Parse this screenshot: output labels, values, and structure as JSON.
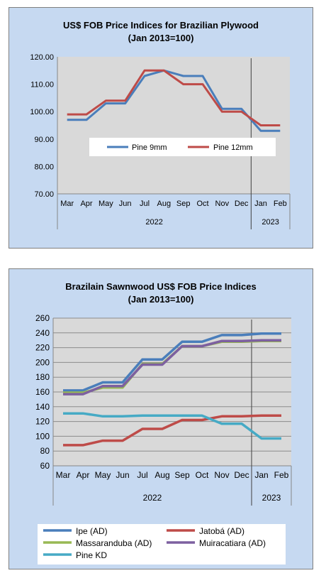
{
  "chart_data": [
    {
      "type": "line",
      "title": "US$ FOB Price Indices for Brazilian  Plywood",
      "subtitle": "(Jan 2013=100)",
      "categories": [
        "Mar",
        "Apr",
        "May",
        "Jun",
        "Jul",
        "Aug",
        "Sep",
        "Oct",
        "Nov",
        "Dec",
        "Jan",
        "Feb"
      ],
      "year_groups": [
        {
          "label": "2022"
        },
        {
          "label": "2023"
        }
      ],
      "ylim": [
        70,
        120
      ],
      "yticks": [
        "70.00",
        "80.00",
        "90.00",
        "100.00",
        "110.00",
        "120.00"
      ],
      "grid": false,
      "legend_position": "inside, lower-center",
      "series": [
        {
          "name": "Pine 9mm",
          "color": "#4a7ebb",
          "values": [
            97,
            97,
            103,
            103,
            113,
            115,
            113,
            113,
            101,
            101,
            93,
            93
          ]
        },
        {
          "name": "Pine 12mm",
          "color": "#be4b48",
          "values": [
            99,
            99,
            104,
            104,
            115,
            115,
            110,
            110,
            100,
            100,
            95,
            95
          ]
        }
      ]
    },
    {
      "type": "line",
      "title": "Brazilain Sawnwood US$ FOB Price Indices",
      "subtitle": "(Jan 2013=100)",
      "categories": [
        "Mar",
        "Apr",
        "May",
        "Jun",
        "Jul",
        "Aug",
        "Sep",
        "Oct",
        "Nov",
        "Dec",
        "Jan",
        "Feb"
      ],
      "year_groups": [
        {
          "label": "2022"
        },
        {
          "label": "2023"
        }
      ],
      "ylim": [
        60,
        260
      ],
      "yticks": [
        "60",
        "80",
        "100",
        "120",
        "140",
        "160",
        "180",
        "200",
        "220",
        "240",
        "260"
      ],
      "grid": true,
      "legend_position": "bottom",
      "series": [
        {
          "name": "Ipe (AD)",
          "color": "#4a7ebb",
          "values": [
            162,
            162,
            173,
            173,
            204,
            204,
            228,
            228,
            237,
            237,
            239,
            239
          ]
        },
        {
          "name": "Jatobá (AD)",
          "color": "#be4b48",
          "values": [
            88,
            88,
            94,
            94,
            110,
            110,
            122,
            122,
            127,
            127,
            128,
            128
          ]
        },
        {
          "name": "Massaranduba (AD)",
          "color": "#98b954",
          "values": [
            159,
            159,
            166,
            166,
            198,
            198,
            222,
            222,
            228,
            228,
            229,
            229
          ]
        },
        {
          "name": "Muiracatiara (AD)",
          "color": "#7d60a0",
          "values": [
            157,
            157,
            168,
            168,
            197,
            197,
            222,
            222,
            229,
            229,
            230,
            230
          ]
        },
        {
          "name": "Pine KD",
          "color": "#46aac5",
          "values": [
            131,
            131,
            127,
            127,
            128,
            128,
            128,
            128,
            117,
            117,
            97,
            97
          ]
        }
      ]
    }
  ]
}
